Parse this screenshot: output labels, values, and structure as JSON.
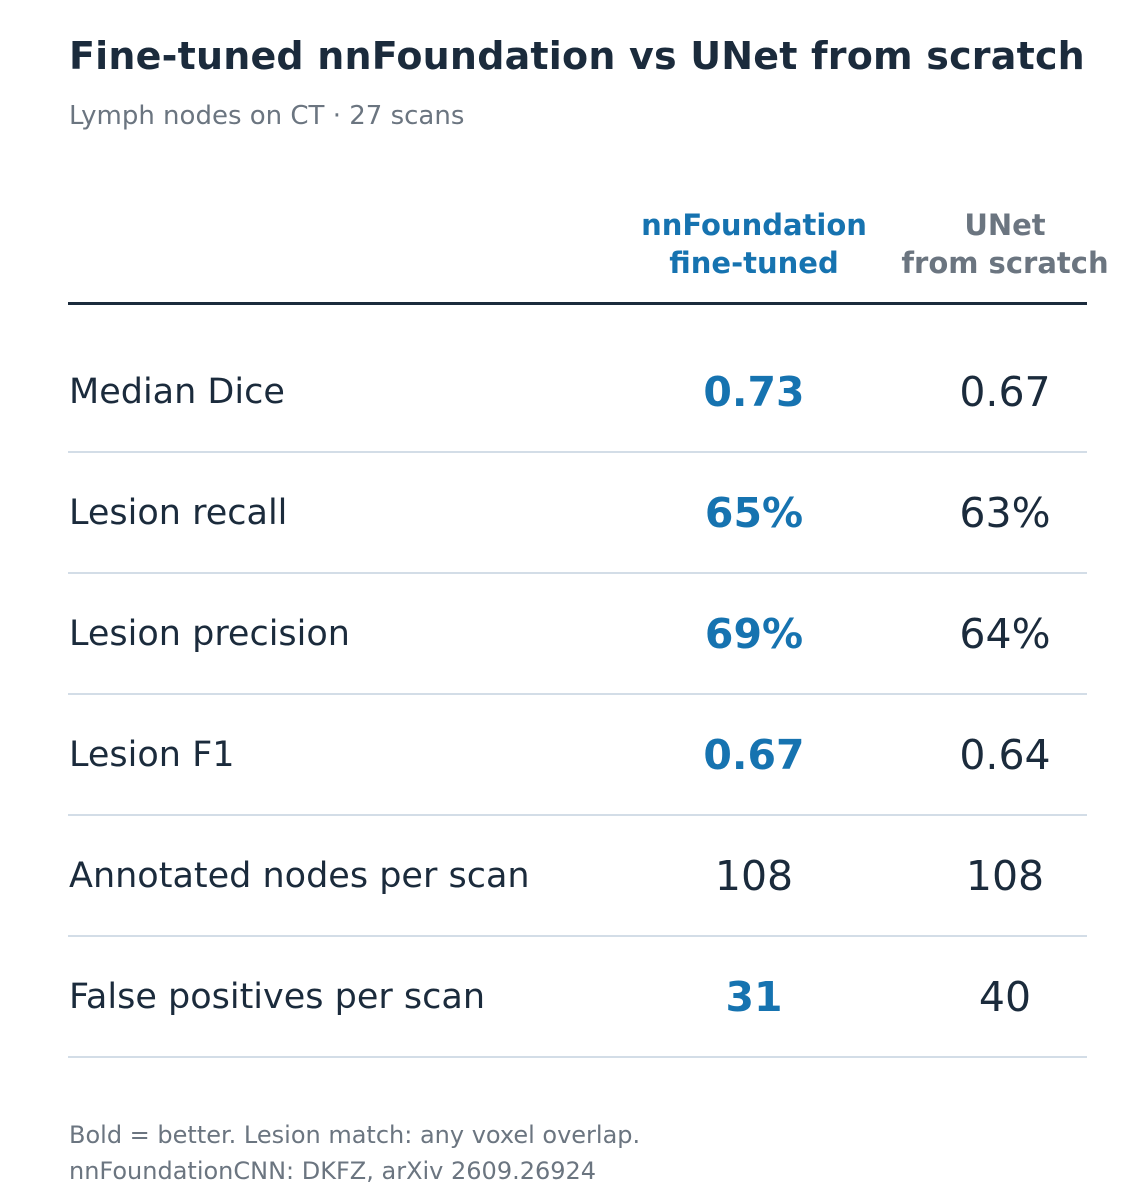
{
  "chart_data": {
    "type": "table",
    "title": "Fine-tuned nnFoundation vs UNet from scratch",
    "subtitle": "Lymph nodes on CT · 27 scans",
    "columns": [
      {
        "line1": "nnFoundation",
        "line2": "fine-tuned"
      },
      {
        "line1": "UNet",
        "line2": "from scratch"
      }
    ],
    "rows": [
      {
        "label": "Median Dice",
        "a": "0.73",
        "b": "0.67",
        "best": "a"
      },
      {
        "label": "Lesion recall",
        "a": "65%",
        "b": "63%",
        "best": "a"
      },
      {
        "label": "Lesion precision",
        "a": "69%",
        "b": "64%",
        "best": "a"
      },
      {
        "label": "Lesion F1",
        "a": "0.67",
        "b": "0.64",
        "best": "a"
      },
      {
        "label": "Annotated nodes per scan",
        "a": "108",
        "b": "108",
        "best": ""
      },
      {
        "label": "False positives per scan",
        "a": "31",
        "b": "40",
        "best": "a"
      }
    ],
    "notes": [
      "Bold = better. Lesion match: any voxel overlap.",
      "nnFoundationCNN: DKFZ, arXiv 2609.26924"
    ],
    "colors": {
      "highlight": "#1673b0",
      "text": "#1b2b3c",
      "muted": "#6b7580",
      "rule": "#d3dde7"
    }
  }
}
